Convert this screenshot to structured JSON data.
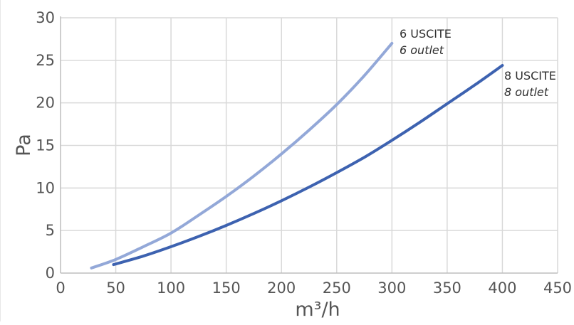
{
  "chart_data": {
    "type": "line",
    "title": "",
    "xlabel": "m³/h",
    "ylabel": "Pa",
    "xlim": [
      0,
      450
    ],
    "ylim": [
      0,
      30
    ],
    "x_ticks": [
      "0",
      "50",
      "100",
      "150",
      "200",
      "250",
      "300",
      "350",
      "400",
      "450"
    ],
    "y_ticks": [
      "0",
      "5",
      "10",
      "15",
      "20",
      "25",
      "30"
    ],
    "grid": true,
    "legend": "none",
    "series": [
      {
        "name": "6 USCITE",
        "label_line1": "6 USCITE",
        "label_line2": "6 outlet",
        "color": "#93a8d8",
        "x": [
          28,
          50,
          75,
          100,
          125,
          150,
          175,
          200,
          225,
          250,
          275,
          300
        ],
        "y": [
          0.6,
          1.6,
          3.1,
          4.7,
          6.8,
          9.0,
          11.4,
          14.0,
          16.8,
          19.8,
          23.2,
          27.0
        ]
      },
      {
        "name": "8 USCITE",
        "label_line1": "8 USCITE",
        "label_line2": "8 outlet",
        "color": "#3d62b0",
        "x": [
          48,
          75,
          100,
          125,
          150,
          175,
          200,
          225,
          250,
          275,
          300,
          325,
          350,
          375,
          400
        ],
        "y": [
          1.0,
          2.0,
          3.1,
          4.3,
          5.6,
          7.0,
          8.5,
          10.1,
          11.8,
          13.6,
          15.6,
          17.7,
          19.9,
          22.1,
          24.4
        ]
      }
    ]
  }
}
